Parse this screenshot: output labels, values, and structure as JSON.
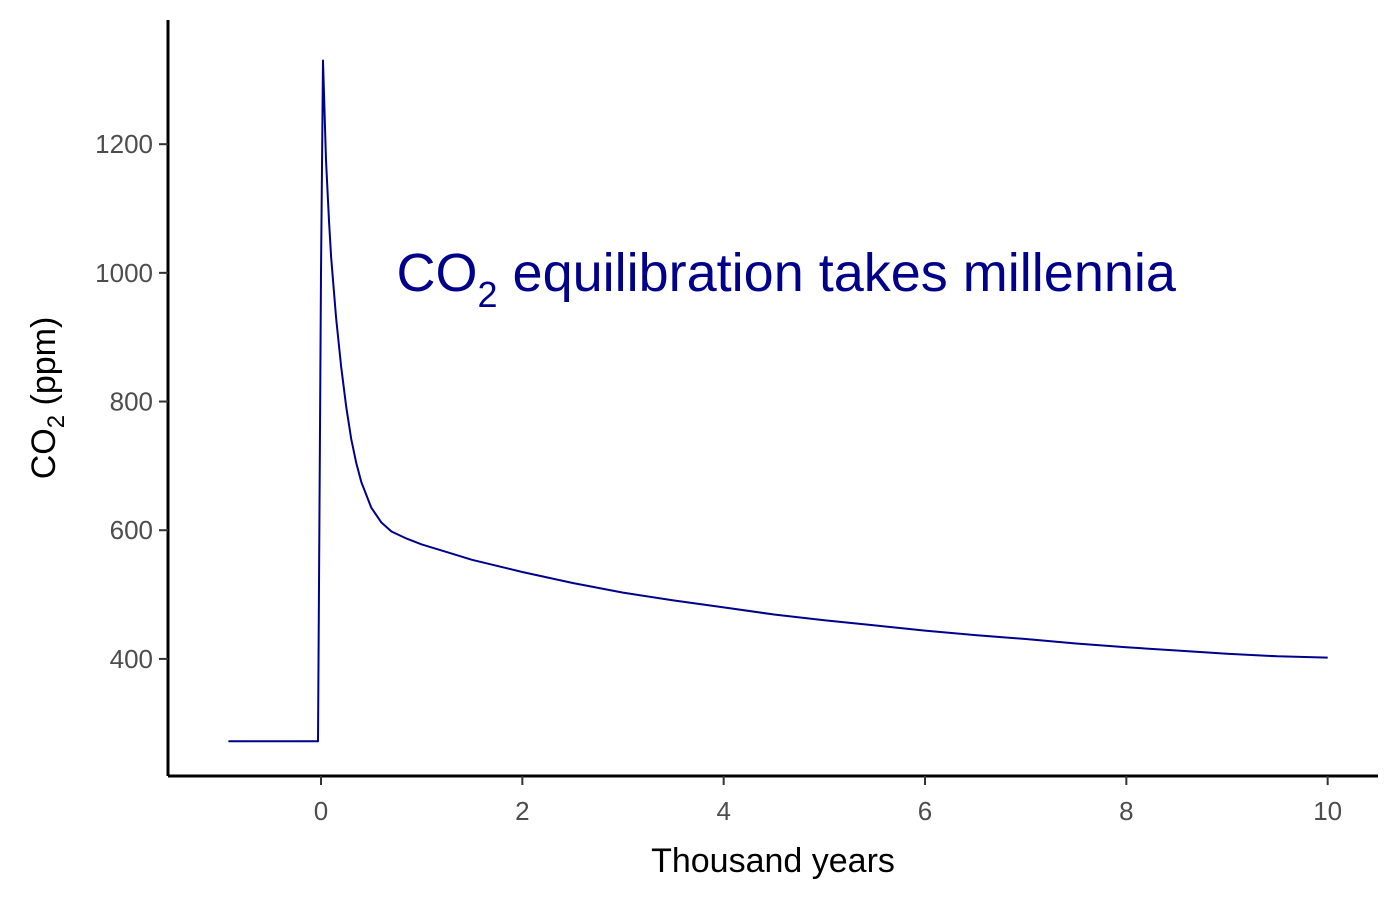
{
  "chart_data": {
    "type": "line",
    "title": "",
    "xlabel": "Thousand years",
    "ylabel": {
      "main": "CO",
      "subscript": "2",
      "suffix": " (ppm)"
    },
    "xlim": [
      -1.52,
      10.5
    ],
    "ylim": [
      218,
      1393
    ],
    "x_ticks": [
      0,
      2,
      4,
      6,
      8,
      10
    ],
    "y_ticks": [
      400,
      600,
      800,
      1000,
      1200
    ],
    "grid": false,
    "legend": "none",
    "annotation": {
      "main": "CO",
      "subscript": "2",
      "suffix": " equilibration takes millennia",
      "x": 0.75,
      "y": 1000
    },
    "series": [
      {
        "color": "#00008b",
        "points": [
          [
            -0.92,
            272
          ],
          [
            -0.03,
            272
          ],
          [
            0.0,
            1000
          ],
          [
            0.02,
            1330
          ],
          [
            0.05,
            1175
          ],
          [
            0.08,
            1078
          ],
          [
            0.1,
            1025
          ],
          [
            0.15,
            930
          ],
          [
            0.2,
            855
          ],
          [
            0.25,
            792
          ],
          [
            0.3,
            742
          ],
          [
            0.35,
            705
          ],
          [
            0.4,
            675
          ],
          [
            0.5,
            635
          ],
          [
            0.6,
            612
          ],
          [
            0.7,
            598
          ],
          [
            0.85,
            587
          ],
          [
            1.0,
            578
          ],
          [
            1.25,
            566
          ],
          [
            1.5,
            554
          ],
          [
            2.0,
            535
          ],
          [
            2.5,
            518
          ],
          [
            3.0,
            503
          ],
          [
            3.5,
            491
          ],
          [
            4.0,
            480
          ],
          [
            4.5,
            469
          ],
          [
            5.0,
            460
          ],
          [
            5.5,
            452
          ],
          [
            6.0,
            444
          ],
          [
            6.5,
            437
          ],
          [
            7.0,
            431
          ],
          [
            7.5,
            424
          ],
          [
            8.0,
            418
          ],
          [
            8.5,
            413
          ],
          [
            9.0,
            408
          ],
          [
            9.5,
            404
          ],
          [
            10.0,
            402
          ]
        ]
      }
    ]
  }
}
